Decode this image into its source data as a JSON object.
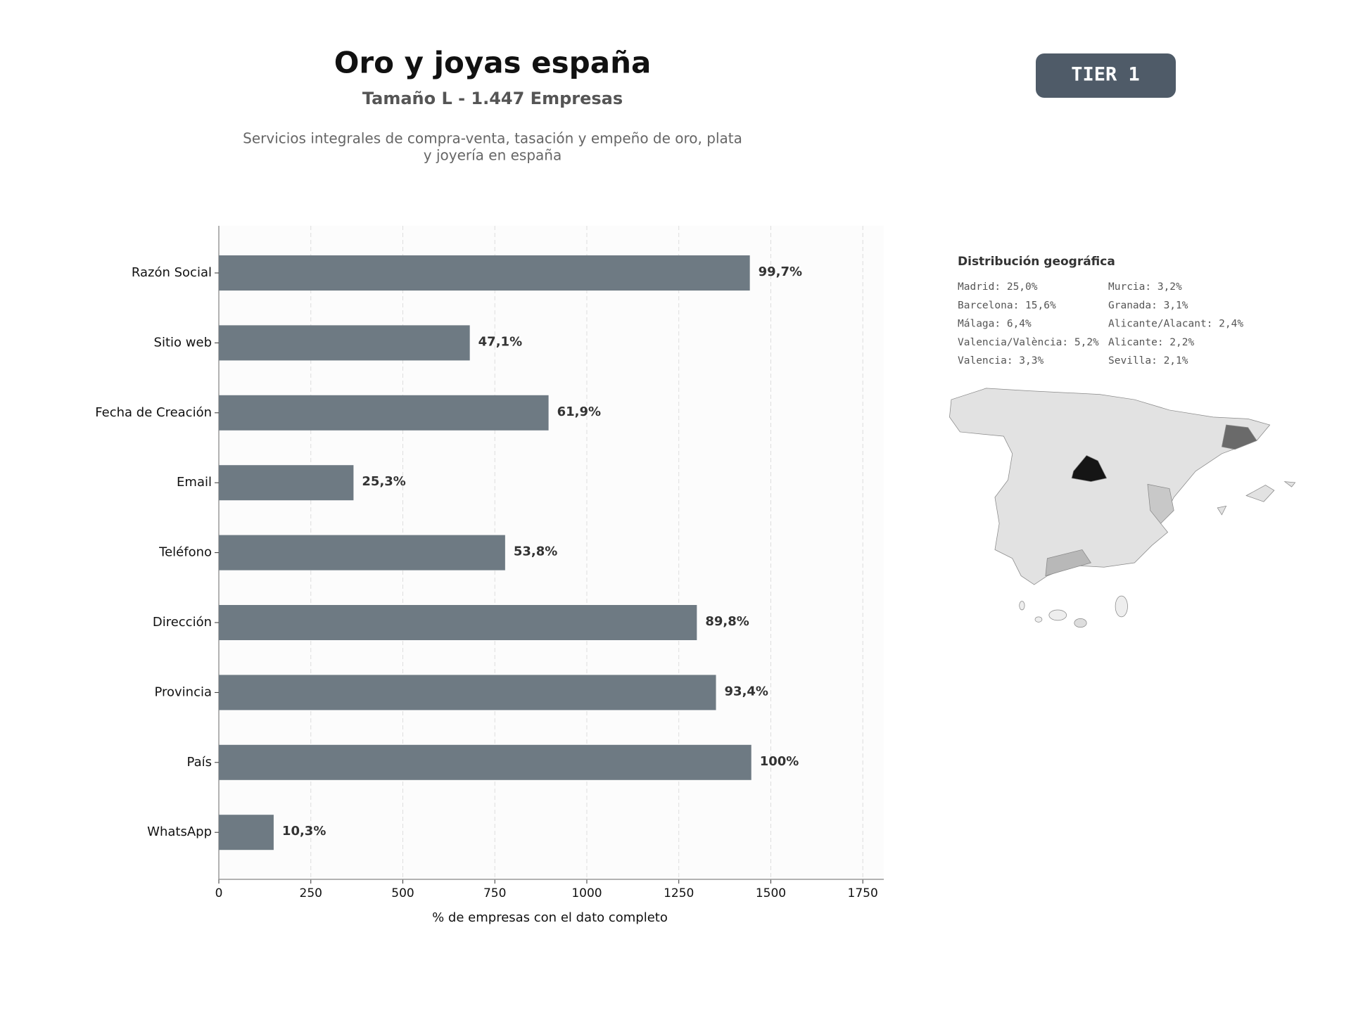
{
  "chart_data": {
    "type": "bar",
    "orientation": "horizontal",
    "title": "Oro y joyas españa",
    "subtitle": "Tamaño L - 1.447 Empresas",
    "description": [
      "Servicios integrales de compra-venta, tasación y empeño de oro, plata",
      "y joyería en españa"
    ],
    "badge": "TIER 1",
    "xlabel": "% de empresas con el dato completo",
    "categories": [
      "Razón Social",
      "Sitio web",
      "Fecha de Creación",
      "Email",
      "Teléfono",
      "Dirección",
      "Provincia",
      "País",
      "WhatsApp"
    ],
    "values": [
      1443,
      682,
      896,
      366,
      778,
      1299,
      1351,
      1447,
      149
    ],
    "value_labels": [
      "99,7%",
      "47,1%",
      "61,9%",
      "25,3%",
      "53,8%",
      "89,8%",
      "93,4%",
      "100%",
      "10,3%"
    ],
    "color": "#6e7a83",
    "xlim": [
      0,
      1807
    ],
    "xticks": [
      0,
      250,
      500,
      750,
      1000,
      1250,
      1500,
      1750
    ],
    "grid": true,
    "geo": {
      "title": "Distribución geográfica",
      "columns": [
        [
          "Madrid: 25,0%",
          "Barcelona: 15,6%",
          "Málaga: 6,4%",
          "Valencia/València: 5,2%",
          "Valencia: 3,3%"
        ],
        [
          "Murcia: 3,2%",
          "Granada: 3,1%",
          "Alicante/Alacant: 2,4%",
          "Alicante: 2,2%",
          "Sevilla: 2,1%"
        ]
      ]
    }
  }
}
